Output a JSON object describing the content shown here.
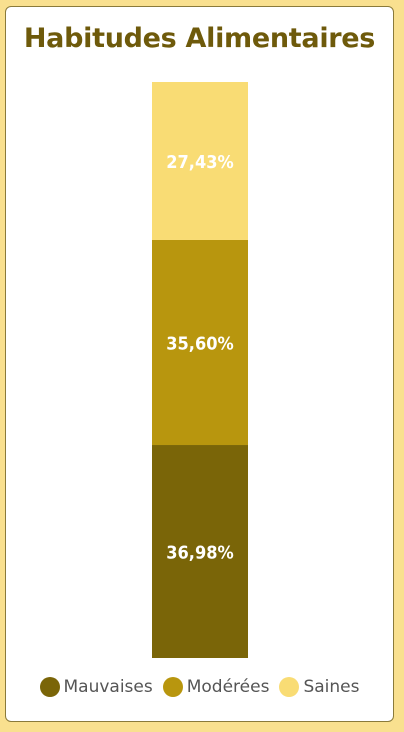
{
  "colors": {
    "title": "#6e5a0b",
    "mauvaises": "#7a6508",
    "moderees": "#b8960e",
    "saines": "#f9dc74"
  },
  "chart_data": {
    "type": "bar",
    "stacked": true,
    "orientation": "vertical",
    "title": "Habitudes Alimentaires",
    "unit": "%",
    "ylim": [
      0,
      100
    ],
    "grid": false,
    "legend_position": "bottom",
    "series": [
      {
        "name": "Mauvaises",
        "value": 36.98,
        "label": "36,98%",
        "color": "#7a6508"
      },
      {
        "name": "Modérées",
        "value": 35.6,
        "label": "35,60%",
        "color": "#b8960e"
      },
      {
        "name": "Saines",
        "value": 27.43,
        "label": "27,43%",
        "color": "#f9dc74"
      }
    ]
  }
}
